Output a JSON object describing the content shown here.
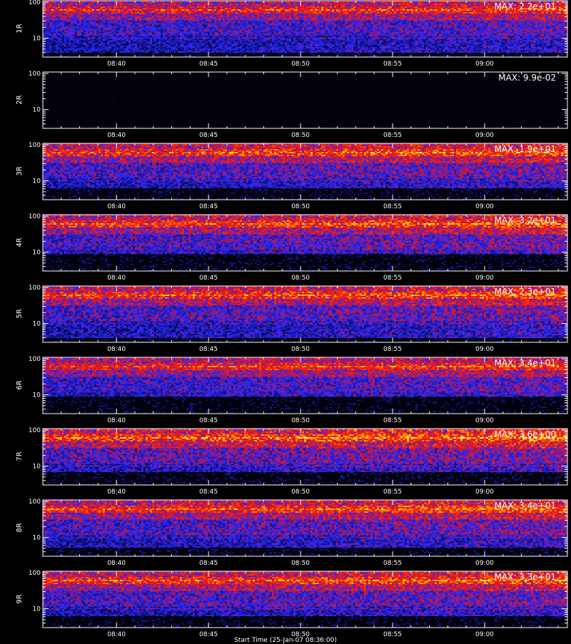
{
  "figure": {
    "footer_text": "Start Time (25-Jan-07 08:36:00)"
  },
  "chart_data": [
    {
      "type": "heatmap",
      "ylabel": "1R",
      "yscale": "log",
      "ytick_labels": [
        "100",
        "10"
      ],
      "yticks": [
        100,
        10
      ],
      "xtick_labels": [
        "08:40",
        "08:45",
        "08:50",
        "08:55",
        "09:00"
      ],
      "max_label": "MAX: 2.2e+01",
      "intensity": 0.8,
      "noise_floor": 4
    },
    {
      "type": "heatmap",
      "ylabel": "2R",
      "yscale": "log",
      "ytick_labels": [
        "100",
        "10"
      ],
      "yticks": [
        100,
        10
      ],
      "xtick_labels": [
        "08:40",
        "08:45",
        "08:50",
        "08:55",
        "09:00"
      ],
      "max_label": "MAX: 9.9e-02",
      "intensity": 0.0,
      "noise_floor": 100
    },
    {
      "type": "heatmap",
      "ylabel": "3R",
      "yscale": "log",
      "ytick_labels": [
        "100",
        "10"
      ],
      "yticks": [
        100,
        10
      ],
      "xtick_labels": [
        "08:40",
        "08:45",
        "08:50",
        "08:55",
        "09:00"
      ],
      "max_label": "MAX: 1.9e+01",
      "intensity": 0.85,
      "noise_floor": 6
    },
    {
      "type": "heatmap",
      "ylabel": "4R",
      "yscale": "log",
      "ytick_labels": [
        "100",
        "10"
      ],
      "yticks": [
        100,
        10
      ],
      "xtick_labels": [
        "08:40",
        "08:45",
        "08:50",
        "08:55",
        "09:00"
      ],
      "max_label": "MAX: 3.2e+01",
      "intensity": 0.85,
      "noise_floor": 9
    },
    {
      "type": "heatmap",
      "ylabel": "5R",
      "yscale": "log",
      "ytick_labels": [
        "100",
        "10"
      ],
      "yticks": [
        100,
        10
      ],
      "xtick_labels": [
        "08:40",
        "08:45",
        "08:50",
        "08:55",
        "09:00"
      ],
      "max_label": "MAX: 2.3e+01",
      "intensity": 0.85,
      "noise_floor": 4
    },
    {
      "type": "heatmap",
      "ylabel": "6R",
      "yscale": "log",
      "ytick_labels": [
        "100",
        "10"
      ],
      "yticks": [
        100,
        10
      ],
      "xtick_labels": [
        "08:40",
        "08:45",
        "08:50",
        "08:55",
        "09:00"
      ],
      "max_label": "MAX: 3.4e+01",
      "intensity": 0.8,
      "noise_floor": 9
    },
    {
      "type": "heatmap",
      "ylabel": "7R",
      "yscale": "log",
      "ytick_labels": [
        "100",
        "10"
      ],
      "yticks": [
        100,
        10
      ],
      "xtick_labels": [
        "08:40",
        "08:45",
        "08:50",
        "08:55",
        "09:00"
      ],
      "max_label": "MAX: 3.6e+00",
      "intensity": 0.9,
      "noise_floor": 7
    },
    {
      "type": "heatmap",
      "ylabel": "8R",
      "yscale": "log",
      "ytick_labels": [
        "100",
        "10"
      ],
      "yticks": [
        100,
        10
      ],
      "xtick_labels": [
        "08:40",
        "08:45",
        "08:50",
        "08:55",
        "09:00"
      ],
      "max_label": "MAX: 3.4e+01",
      "intensity": 0.85,
      "noise_floor": 5
    },
    {
      "type": "heatmap",
      "ylabel": "9R",
      "yscale": "log",
      "ytick_labels": [
        "100",
        "10"
      ],
      "yticks": [
        100,
        10
      ],
      "xtick_labels": [
        "08:40",
        "08:45",
        "08:50",
        "08:55",
        "09:00"
      ],
      "max_label": "MAX: 3.3e+01",
      "intensity": 0.85,
      "noise_floor": 6
    }
  ]
}
